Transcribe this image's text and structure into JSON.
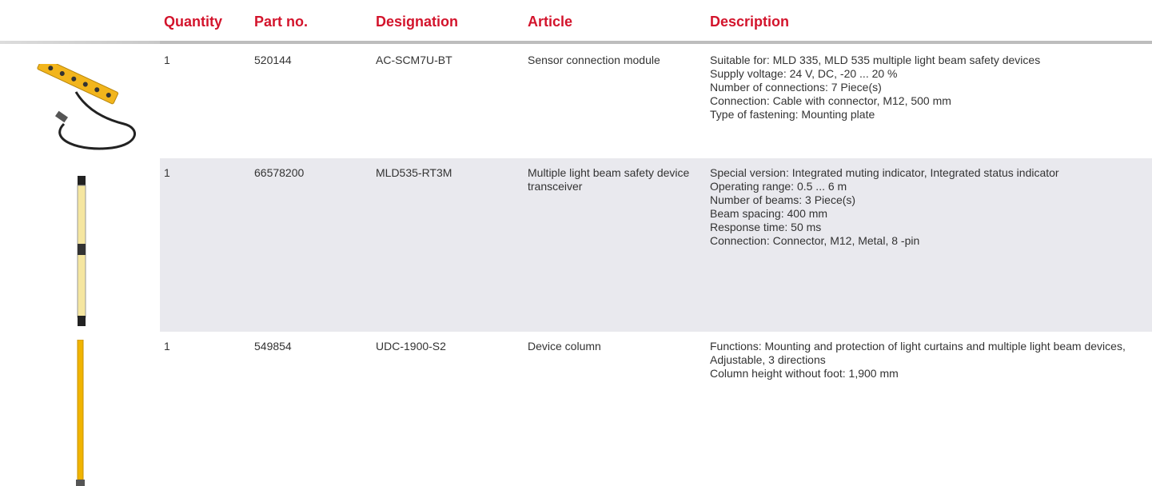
{
  "header": {
    "columns": [
      "Quantity",
      "Part no.",
      "Designation",
      "Article",
      "Description"
    ]
  },
  "table": {
    "rows": [
      {
        "quantity": "1",
        "part_no": "520144",
        "designation": "AC-SCM7U-BT",
        "article": "Sensor connection module",
        "description": [
          "Suitable for: MLD 335, MLD 535 multiple light beam safety devices",
          "Supply voltage: 24 V, DC, -20 ... 20 %",
          "Number of connections: 7 Piece(s)",
          "Connection: Cable with connector, M12, 500 mm",
          "Type of fastening: Mounting plate"
        ]
      },
      {
        "quantity": "1",
        "part_no": "66578200",
        "designation": "MLD535-RT3M",
        "article": "Multiple light beam safety device transceiver",
        "description": [
          "Special version: Integrated muting indicator, Integrated status indicator",
          "Operating range: 0.5 ... 6 m",
          "Number of beams: 3 Piece(s)",
          "Beam spacing: 400 mm",
          "Response time: 50 ms",
          "Connection: Connector, M12, Metal, 8 -pin"
        ]
      },
      {
        "quantity": "1",
        "part_no": "549854",
        "designation": "UDC-1900-S2",
        "article": "Device column",
        "description": [
          "Functions: Mounting and protection of light curtains and multiple light beam devices, Adjustable, 3 directions",
          "Column height without foot: 1,900 mm"
        ]
      }
    ]
  }
}
